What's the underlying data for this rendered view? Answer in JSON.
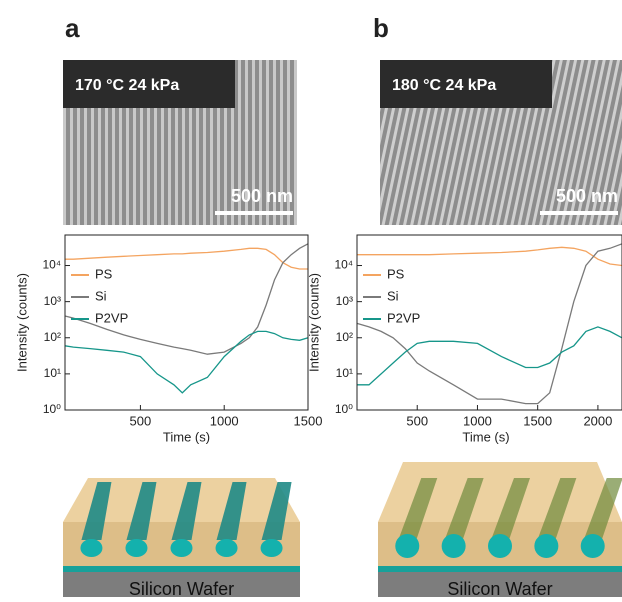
{
  "panels": [
    {
      "label": "a",
      "sem_label": "170 °C 24 kPa",
      "scale_bar": "500 nm",
      "substrate": "Silicon Wafer"
    },
    {
      "label": "b",
      "sem_label": "180 °C 24 kPa",
      "scale_bar": "500 nm",
      "substrate": "Silicon Wafer"
    }
  ],
  "chart_data": [
    {
      "type": "line",
      "x_label": "Time (s)",
      "y_label": "Intensity (counts)",
      "log_y": true,
      "legend": "upper left",
      "x": [
        50,
        100,
        200,
        300,
        400,
        500,
        600,
        700,
        750,
        800,
        900,
        1000,
        1100,
        1150,
        1200,
        1250,
        1300,
        1350,
        1400,
        1450,
        1500
      ],
      "xlim": [
        50,
        1500
      ],
      "xticks": [
        500,
        1000,
        1500
      ],
      "ylim": [
        1,
        70000
      ],
      "yticks": [
        {
          "value": 1,
          "label": "10⁰"
        },
        {
          "value": 10,
          "label": "10¹"
        },
        {
          "value": 100,
          "label": "10²"
        },
        {
          "value": 1000,
          "label": "10³"
        },
        {
          "value": 10000,
          "label": "10⁴"
        }
      ],
      "series": [
        {
          "name": "PS",
          "color": "#f4a460",
          "values": [
            15000,
            15000,
            16000,
            17000,
            18000,
            19000,
            20000,
            21000,
            21000,
            22000,
            23000,
            25000,
            28000,
            30000,
            30000,
            28000,
            20000,
            12000,
            9000,
            8000,
            8000
          ]
        },
        {
          "name": "Si",
          "color": "#7a7a7a",
          "values": [
            400,
            350,
            250,
            170,
            120,
            90,
            70,
            55,
            50,
            45,
            35,
            40,
            70,
            100,
            200,
            800,
            4000,
            12000,
            20000,
            30000,
            40000
          ]
        },
        {
          "name": "P2VP",
          "color": "#16968a",
          "values": [
            60,
            55,
            50,
            45,
            40,
            30,
            10,
            5,
            3,
            5,
            8,
            30,
            80,
            120,
            150,
            150,
            130,
            100,
            90,
            85,
            100
          ]
        }
      ]
    },
    {
      "type": "line",
      "x_label": "Time (s)",
      "y_label": "Intensity (counts)",
      "log_y": true,
      "legend": "upper left",
      "x": [
        0,
        100,
        200,
        300,
        400,
        500,
        600,
        800,
        1000,
        1200,
        1400,
        1500,
        1600,
        1700,
        1800,
        1900,
        2000,
        2100,
        2200
      ],
      "xlim": [
        0,
        2200
      ],
      "xticks": [
        500,
        1000,
        1500,
        2000
      ],
      "ylim": [
        1,
        70000
      ],
      "yticks": [
        {
          "value": 1,
          "label": "10⁰"
        },
        {
          "value": 10,
          "label": "10¹"
        },
        {
          "value": 100,
          "label": "10²"
        },
        {
          "value": 1000,
          "label": "10³"
        },
        {
          "value": 10000,
          "label": "10⁴"
        }
      ],
      "series": [
        {
          "name": "PS",
          "color": "#f4a460",
          "values": [
            20000,
            20000,
            20000,
            20000,
            20000,
            20000,
            20000,
            21000,
            22000,
            23000,
            25000,
            27000,
            30000,
            32000,
            30000,
            25000,
            15000,
            11000,
            10000
          ]
        },
        {
          "name": "Si",
          "color": "#7a7a7a",
          "values": [
            250,
            200,
            150,
            100,
            50,
            20,
            12,
            5,
            2,
            2,
            1.5,
            1.5,
            3,
            50,
            1000,
            10000,
            25000,
            30000,
            40000
          ]
        },
        {
          "name": "P2VP",
          "color": "#16968a",
          "values": [
            5,
            5,
            10,
            20,
            40,
            70,
            80,
            80,
            70,
            30,
            15,
            15,
            20,
            40,
            60,
            150,
            200,
            150,
            100
          ]
        }
      ]
    }
  ]
}
